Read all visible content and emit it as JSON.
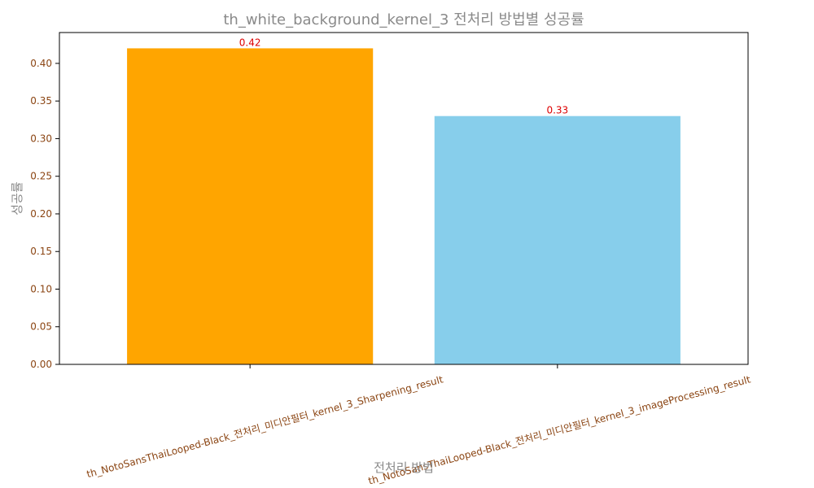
{
  "chart_data": {
    "type": "bar",
    "title": "th_white_background_kernel_3 전처리 방법별 성공률",
    "xlabel": "전처리 방법",
    "ylabel": "성공률",
    "categories": [
      "th_NotoSansThaiLooped-Black_전처리_미디안필터_kernel_3_Sharpening_result",
      "th_NotoSansThaiLooped-Black_전처리_미디안필터_kernel_3_imageProcessing_result"
    ],
    "values": [
      0.42,
      0.33
    ],
    "value_labels": [
      "0.42",
      "0.33"
    ],
    "bar_colors": [
      "#ffa500",
      "#87ceeb"
    ],
    "ylim": [
      0,
      0.441
    ],
    "yticks": [
      0.0,
      0.05,
      0.1,
      0.15,
      0.2,
      0.25,
      0.3,
      0.35,
      0.4
    ],
    "ytick_labels": [
      "0.00",
      "0.05",
      "0.10",
      "0.15",
      "0.20",
      "0.25",
      "0.30",
      "0.35",
      "0.40"
    ],
    "grid": false,
    "colors": {
      "title": "#8a8a8a",
      "axis_label": "#8a8a8a",
      "tick_label": "#8b4513",
      "data_label": "#dd0000"
    }
  }
}
